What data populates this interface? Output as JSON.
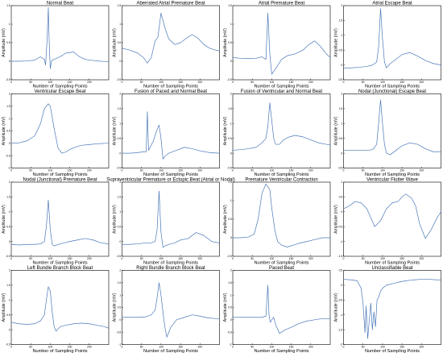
{
  "figure": {
    "xlabel": "Number of Sampling Points",
    "ylabel": "Amplitude (mV)",
    "trace_color": "#4a78b8"
  },
  "chart_data": [
    {
      "type": "line",
      "title": "Normal Beat",
      "xlim": [
        0,
        250
      ],
      "ylim": [
        -0.5,
        1.5
      ],
      "xticks": [
        0,
        50,
        100,
        150,
        200
      ],
      "yticks": [
        -0.5,
        0,
        0.5,
        1,
        1.5
      ],
      "series": [
        {
          "x": [
            0,
            20,
            40,
            60,
            75,
            85,
            88,
            92,
            95,
            97,
            100,
            103,
            106,
            110,
            125,
            140,
            160,
            175,
            190,
            210,
            230,
            250
          ],
          "y": [
            0,
            0,
            0.01,
            0.03,
            0.12,
            0.05,
            -0.1,
            0.6,
            1.45,
            0.6,
            -0.2,
            0,
            0.03,
            0.05,
            0.12,
            0.22,
            0.25,
            0.12,
            0.05,
            0.02,
            0,
            -0.01
          ]
        }
      ]
    },
    {
      "type": "line",
      "title": "Aberrated Atrial Premature Beat",
      "xlim": [
        0,
        250
      ],
      "ylim": [
        -0.5,
        1.5
      ],
      "xticks": [
        0,
        50,
        100,
        150,
        200
      ],
      "yticks": [
        -0.5,
        0,
        0.5,
        1,
        1.5
      ],
      "series": [
        {
          "x": [
            0,
            20,
            40,
            55,
            65,
            75,
            85,
            92,
            100,
            110,
            120,
            135,
            150,
            165,
            180,
            195,
            210,
            225,
            240,
            250
          ],
          "y": [
            0.35,
            0.3,
            0.22,
            0.1,
            -0.05,
            0.1,
            0.55,
            0.65,
            1.3,
            0.9,
            0.6,
            0.45,
            0.5,
            0.62,
            0.72,
            0.62,
            0.45,
            0.35,
            0.3,
            0.28
          ]
        }
      ]
    },
    {
      "type": "line",
      "title": "Atrial Premature Beat",
      "xlim": [
        0,
        250
      ],
      "ylim": [
        -0.5,
        1.5
      ],
      "xticks": [
        0,
        50,
        100,
        150,
        200
      ],
      "yticks": [
        -0.5,
        0,
        0.5,
        1,
        1.5
      ],
      "series": [
        {
          "x": [
            0,
            20,
            40,
            60,
            75,
            85,
            90,
            95,
            100,
            110,
            125,
            140,
            160,
            180,
            195,
            210,
            225,
            240,
            250
          ],
          "y": [
            0.1,
            0.08,
            0.07,
            0.08,
            0.12,
            0.05,
            1.3,
            0.2,
            -0.35,
            -0.2,
            0.05,
            0.15,
            0.2,
            0.3,
            0.45,
            0.55,
            0.4,
            0.2,
            0.1
          ]
        }
      ]
    },
    {
      "type": "line",
      "title": "Atrial Escape Beat",
      "xlim": [
        0,
        250
      ],
      "ylim": [
        -0.5,
        2
      ],
      "xticks": [
        0,
        50,
        100,
        150,
        200
      ],
      "yticks": [
        -0.5,
        0,
        0.5,
        1,
        1.5,
        2
      ],
      "series": [
        {
          "x": [
            0,
            20,
            40,
            60,
            75,
            85,
            90,
            95,
            100,
            105,
            110,
            120,
            135,
            150,
            170,
            190,
            210,
            230,
            250
          ],
          "y": [
            -0.1,
            -0.1,
            -0.08,
            -0.05,
            0,
            0.1,
            0.6,
            1.9,
            0.9,
            0.1,
            -0.1,
            0.05,
            0.2,
            0.35,
            0.42,
            0.3,
            0.15,
            0.05,
            0
          ]
        }
      ]
    },
    {
      "type": "line",
      "title": "Ventricular Escape Beat",
      "xlim": [
        0,
        250
      ],
      "ylim": [
        -1,
        2
      ],
      "xticks": [
        0,
        50,
        100,
        150,
        200
      ],
      "yticks": [
        -1,
        -0.5,
        0,
        0.5,
        1,
        1.5,
        2
      ],
      "series": [
        {
          "x": [
            0,
            20,
            40,
            60,
            75,
            85,
            95,
            100,
            110,
            120,
            130,
            140,
            150,
            165,
            180,
            200,
            220,
            240,
            250
          ],
          "y": [
            0,
            0.02,
            0.1,
            0.3,
            0.8,
            1.4,
            1.6,
            1.5,
            0.6,
            -0.2,
            -0.4,
            -0.35,
            -0.25,
            -0.15,
            -0.08,
            -0.05,
            -0.02,
            0,
            0
          ]
        }
      ]
    },
    {
      "type": "line",
      "title": "Fusion of Paced and Normal Beat",
      "xlim": [
        0,
        250
      ],
      "ylim": [
        -0.5,
        2
      ],
      "xticks": [
        0,
        50,
        100,
        150,
        200
      ],
      "yticks": [
        -0.5,
        0,
        0.5,
        1,
        1.5,
        2
      ],
      "series": [
        {
          "x": [
            0,
            20,
            40,
            55,
            62,
            65,
            68,
            72,
            80,
            90,
            95,
            100,
            105,
            110,
            120,
            140,
            160,
            180,
            200,
            225,
            250
          ],
          "y": [
            0,
            0,
            0.02,
            0.05,
            0.05,
            1.4,
            0.1,
            0.2,
            0.4,
            0.8,
            0.95,
            0.5,
            -0.2,
            -0.1,
            0,
            0.1,
            0.2,
            0.15,
            0.08,
            0.02,
            0
          ]
        }
      ]
    },
    {
      "type": "line",
      "title": "Fusion of Ventricular and Normal Beat",
      "xlim": [
        0,
        250
      ],
      "ylim": [
        -0.5,
        2
      ],
      "xticks": [
        0,
        50,
        100,
        150,
        200
      ],
      "yticks": [
        -0.5,
        0,
        0.5,
        1,
        1.5,
        2
      ],
      "series": [
        {
          "x": [
            0,
            20,
            40,
            60,
            75,
            85,
            90,
            95,
            100,
            105,
            110,
            120,
            130,
            145,
            160,
            180,
            200,
            220,
            240,
            250
          ],
          "y": [
            0.1,
            0.12,
            0.15,
            0.2,
            0.35,
            0.5,
            0.9,
            1.7,
            1.1,
            0.5,
            0.3,
            0.3,
            0.45,
            0.55,
            0.6,
            0.55,
            0.45,
            0.35,
            0.3,
            0.28
          ]
        }
      ]
    },
    {
      "type": "line",
      "title": "Nodal (Junctional) Escape Beat",
      "xlim": [
        0,
        250
      ],
      "ylim": [
        -0.5,
        2
      ],
      "xticks": [
        0,
        50,
        100,
        150,
        200
      ],
      "yticks": [
        -0.5,
        0,
        0.5,
        1,
        1.5,
        2
      ],
      "series": [
        {
          "x": [
            0,
            20,
            40,
            60,
            75,
            85,
            90,
            95,
            100,
            105,
            110,
            120,
            135,
            150,
            170,
            190,
            210,
            230,
            250
          ],
          "y": [
            0.1,
            0.1,
            0.1,
            0.1,
            0.12,
            0.3,
            1.0,
            1.8,
            1.0,
            0.3,
            0,
            -0.05,
            0.1,
            0.25,
            0.35,
            0.3,
            0.15,
            0.05,
            0.05
          ]
        }
      ]
    },
    {
      "type": "line",
      "title": "Nodal (Junctional) Premature Beat",
      "xlim": [
        0,
        250
      ],
      "ylim": [
        -0.5,
        2
      ],
      "xticks": [
        0,
        50,
        100,
        150,
        200
      ],
      "yticks": [
        -0.5,
        0,
        0.5,
        1,
        1.5,
        2
      ],
      "series": [
        {
          "x": [
            0,
            20,
            40,
            60,
            75,
            85,
            90,
            95,
            100,
            105,
            110,
            120,
            135,
            150,
            170,
            190,
            210,
            230,
            250
          ],
          "y": [
            -0.1,
            -0.12,
            -0.1,
            -0.1,
            -0.08,
            0,
            0.5,
            1.4,
            0.4,
            -0.1,
            -0.15,
            -0.1,
            -0.05,
            0,
            0.05,
            0.1,
            0.05,
            -0.05,
            -0.08
          ]
        }
      ]
    },
    {
      "type": "line",
      "title": "Supraventricular Premature or Ectopic Beat (Atrial or Nodal)",
      "xlim": [
        0,
        250
      ],
      "ylim": [
        -0.5,
        2
      ],
      "xticks": [
        0,
        50,
        100,
        150,
        200
      ],
      "yticks": [
        -0.5,
        0,
        0.5,
        1,
        1.5,
        2
      ],
      "series": [
        {
          "x": [
            0,
            20,
            40,
            60,
            75,
            85,
            90,
            95,
            100,
            105,
            110,
            120,
            135,
            150,
            170,
            190,
            210,
            230,
            250
          ],
          "y": [
            -0.1,
            -0.1,
            -0.08,
            -0.05,
            -0.05,
            0,
            0.4,
            1.7,
            0.3,
            -0.2,
            -0.15,
            -0.1,
            -0.05,
            0.05,
            0.1,
            0.3,
            0.2,
            0,
            -0.05
          ]
        }
      ]
    },
    {
      "type": "line",
      "title": "Premature Ventricular Contraction",
      "xlim": [
        0,
        250
      ],
      "ylim": [
        -0.5,
        1.5
      ],
      "xticks": [
        0,
        50,
        100,
        150,
        200
      ],
      "yticks": [
        -0.5,
        0,
        0.5,
        1,
        1.5
      ],
      "series": [
        {
          "x": [
            0,
            20,
            40,
            55,
            65,
            75,
            85,
            95,
            100,
            108,
            115,
            125,
            140,
            155,
            170,
            190,
            210,
            230,
            250
          ],
          "y": [
            0,
            0,
            0.02,
            0.1,
            0.5,
            1.2,
            1.45,
            1.3,
            0.8,
            0.2,
            -0.1,
            -0.2,
            -0.25,
            -0.2,
            -0.15,
            -0.1,
            -0.05,
            0,
            0
          ]
        }
      ]
    },
    {
      "type": "line",
      "title": "Ventricular Flutter Wave",
      "xlim": [
        0,
        250
      ],
      "ylim": [
        -1.5,
        1
      ],
      "xticks": [
        0,
        50,
        100,
        150,
        200
      ],
      "yticks": [
        -1.5,
        -1,
        -0.5,
        0,
        0.5,
        1
      ],
      "series": [
        {
          "x": [
            0,
            15,
            30,
            45,
            60,
            70,
            80,
            95,
            110,
            125,
            140,
            150,
            160,
            175,
            185,
            195,
            210,
            225,
            240,
            250
          ],
          "y": [
            0.1,
            0.2,
            0.35,
            0.3,
            0.1,
            -0.2,
            -0.5,
            -0.3,
            0.1,
            0.3,
            0.35,
            0.5,
            0.6,
            0.45,
            0.2,
            -0.4,
            -0.9,
            -0.6,
            -0.2,
            0
          ]
        }
      ]
    },
    {
      "type": "line",
      "title": "Left Bundle Branch Block Beat",
      "xlim": [
        0,
        250
      ],
      "ylim": [
        -0.5,
        2
      ],
      "xticks": [
        0,
        50,
        100,
        150,
        200
      ],
      "yticks": [
        -0.5,
        0,
        0.5,
        1,
        1.5,
        2
      ],
      "series": [
        {
          "x": [
            0,
            20,
            40,
            60,
            75,
            85,
            90,
            95,
            100,
            105,
            110,
            115,
            125,
            140,
            160,
            180,
            200,
            220,
            240,
            250
          ],
          "y": [
            0.25,
            0.2,
            0.18,
            0.2,
            0.3,
            0.5,
            1.0,
            1.45,
            1.3,
            0.6,
            0.1,
            -0.05,
            0.1,
            0.15,
            0.2,
            0.22,
            0.2,
            0.15,
            0.1,
            0.05
          ]
        }
      ]
    },
    {
      "type": "line",
      "title": "Right Bundle Branch Block Beat",
      "xlim": [
        0,
        250
      ],
      "ylim": [
        -1,
        2
      ],
      "xticks": [
        0,
        50,
        100,
        150,
        200
      ],
      "yticks": [
        -1,
        -0.5,
        0,
        0.5,
        1,
        1.5,
        2
      ],
      "series": [
        {
          "x": [
            0,
            20,
            40,
            60,
            75,
            85,
            90,
            95,
            100,
            105,
            110,
            115,
            125,
            140,
            160,
            180,
            200,
            220,
            240,
            250
          ],
          "y": [
            0.1,
            0.1,
            0.1,
            0.12,
            0.2,
            0.4,
            0.9,
            1.5,
            1.0,
            0.3,
            -0.3,
            -0.7,
            -0.3,
            0,
            0.1,
            0.2,
            0.15,
            0.08,
            0.05,
            0.05
          ]
        }
      ]
    },
    {
      "type": "line",
      "title": "Paced Beat",
      "xlim": [
        0,
        250
      ],
      "ylim": [
        -1,
        2
      ],
      "xticks": [
        0,
        50,
        100,
        150,
        200
      ],
      "yticks": [
        -1,
        -0.5,
        0,
        0.5,
        1,
        1.5,
        2
      ],
      "series": [
        {
          "x": [
            0,
            20,
            40,
            60,
            75,
            85,
            90,
            93,
            96,
            100,
            105,
            110,
            120,
            135,
            150,
            170,
            190,
            210,
            230,
            250
          ],
          "y": [
            0.1,
            0.1,
            0.1,
            0.1,
            0.1,
            0.15,
            1.4,
            0.2,
            -0.1,
            0,
            0.1,
            -0.2,
            -0.55,
            -0.4,
            -0.3,
            -0.15,
            -0.05,
            0,
            0.05,
            0.05
          ]
        }
      ]
    },
    {
      "type": "line",
      "title": "Unclassifiable Beat",
      "xlim": [
        0,
        250
      ],
      "ylim": [
        -2,
        0.5
      ],
      "xticks": [
        0,
        50,
        100,
        150,
        200
      ],
      "yticks": [
        -2,
        -1.5,
        -1,
        -0.5,
        0,
        0.5
      ],
      "series": [
        {
          "x": [
            0,
            20,
            35,
            45,
            50,
            55,
            58,
            62,
            66,
            70,
            74,
            78,
            82,
            86,
            90,
            95,
            100,
            110,
            125,
            140,
            160,
            180,
            200,
            220,
            240,
            250
          ],
          "y": [
            0.2,
            0.18,
            0.15,
            -0.1,
            -0.6,
            -1.6,
            -0.7,
            -1.8,
            -1.2,
            -0.6,
            -1.5,
            -0.9,
            -1.4,
            -0.5,
            -0.4,
            -0.2,
            -0.1,
            0,
            0.05,
            0.1,
            0.15,
            0.18,
            0.2,
            0.2,
            0.18,
            0.18
          ]
        }
      ]
    }
  ]
}
